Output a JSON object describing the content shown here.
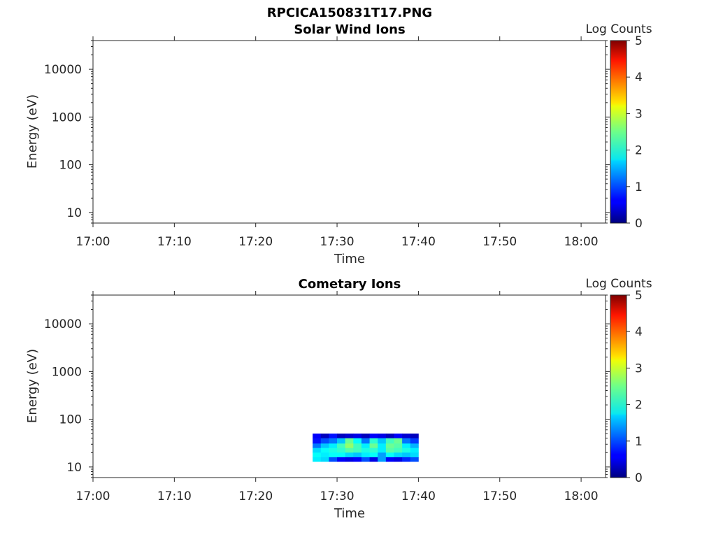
{
  "figure_title": "RPCICA150831T17.PNG",
  "chart_data": [
    {
      "type": "heatmap",
      "title": "Solar Wind Ions",
      "xlabel": "Time",
      "ylabel": "Energy (eV)",
      "x_ticks": [
        "17:00",
        "17:10",
        "17:20",
        "17:30",
        "17:40",
        "17:50",
        "18:00"
      ],
      "xlim": [
        "17:00",
        "18:03"
      ],
      "y_scale": "log",
      "y_ticks": [
        10,
        100,
        1000,
        10000
      ],
      "y_tick_labels": [
        "10",
        "100",
        "1000",
        "10000"
      ],
      "ylim": [
        6,
        40000
      ],
      "colorbar": {
        "label": "Log Counts",
        "range": [
          0,
          5
        ],
        "ticks": [
          "0",
          "1",
          "2",
          "3",
          "4",
          "5"
        ],
        "colormap": "jet"
      },
      "data": []
    },
    {
      "type": "heatmap",
      "title": "Cometary Ions",
      "xlabel": "Time",
      "ylabel": "Energy (eV)",
      "x_ticks": [
        "17:00",
        "17:10",
        "17:20",
        "17:30",
        "17:40",
        "17:50",
        "18:00"
      ],
      "xlim": [
        "17:00",
        "18:03"
      ],
      "y_scale": "log",
      "y_ticks": [
        10,
        100,
        1000,
        10000
      ],
      "y_tick_labels": [
        "10",
        "100",
        "1000",
        "10000"
      ],
      "ylim": [
        6,
        40000
      ],
      "colorbar": {
        "label": "Log Counts",
        "range": [
          0,
          5
        ],
        "ticks": [
          "0",
          "1",
          "2",
          "3",
          "4",
          "5"
        ],
        "colormap": "jet"
      },
      "data_extent": {
        "time": [
          "17:27",
          "17:40"
        ],
        "energy": [
          13,
          50
        ]
      },
      "energy_bands": [
        {
          "energy": [
            40,
            50
          ],
          "log_counts": [
            0.6,
            0.3,
            0.7,
            0.3,
            0.4,
            0.5,
            0.3,
            0.6,
            0.5,
            0.3,
            0.6,
            0.4,
            0.3
          ]
        },
        {
          "energy": [
            31,
            40
          ],
          "log_counts": [
            0.7,
            1.0,
            1.2,
            1.6,
            2.4,
            1.9,
            1.2,
            2.1,
            1.6,
            2.2,
            2.4,
            1.2,
            0.9
          ]
        },
        {
          "energy": [
            25,
            31
          ],
          "log_counts": [
            1.2,
            1.6,
            1.8,
            2.2,
            2.6,
            2.2,
            1.8,
            2.4,
            1.8,
            2.4,
            2.3,
            1.8,
            1.5
          ]
        },
        {
          "energy": [
            20,
            25
          ],
          "log_counts": [
            1.7,
            1.9,
            2.0,
            2.1,
            2.3,
            2.2,
            2.0,
            2.1,
            1.8,
            2.3,
            2.2,
            2.0,
            1.8
          ]
        },
        {
          "energy": [
            16,
            20
          ],
          "log_counts": [
            1.9,
            1.8,
            1.9,
            1.9,
            1.7,
            1.6,
            1.8,
            1.9,
            1.4,
            1.9,
            1.7,
            1.6,
            1.7
          ]
        },
        {
          "energy": [
            13,
            16
          ],
          "log_counts": [
            1.8,
            1.7,
            1.0,
            0.6,
            0.5,
            0.6,
            1.0,
            0.5,
            1.4,
            0.6,
            0.5,
            0.8,
            1.0
          ]
        }
      ]
    }
  ]
}
